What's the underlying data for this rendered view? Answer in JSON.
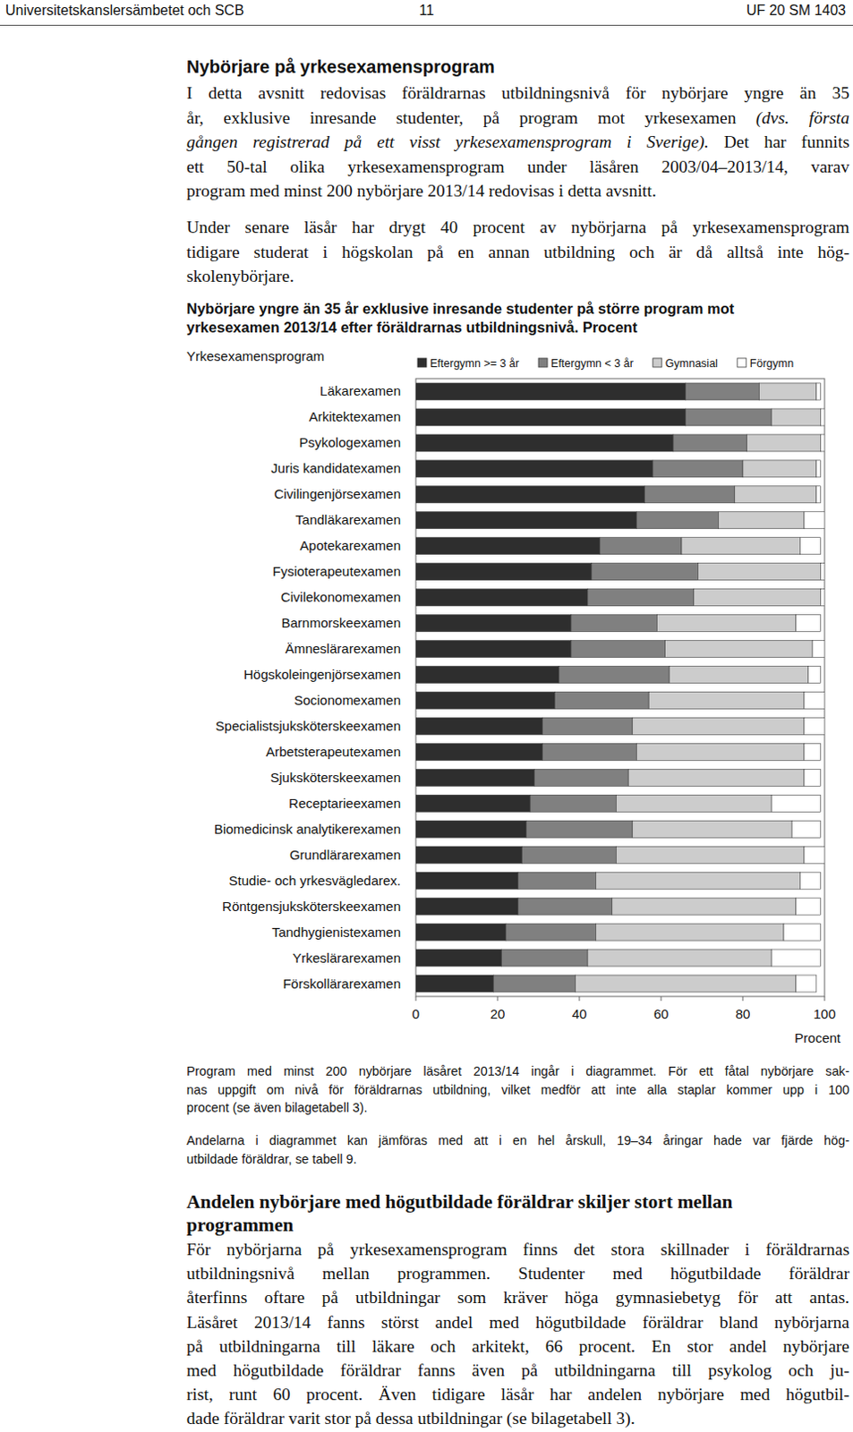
{
  "header": {
    "left": "Universitetskanslersämbetet och SCB",
    "page": "11",
    "right": "UF 20 SM 1403"
  },
  "section": {
    "heading": "Nybörjare på yrkesexamensprogram",
    "paragraphs": [
      [
        [
          {
            "text": "I detta avsnitt redovisas föräldrarnas utbildningsnivå för nybörjare yngre än 35",
            "italic": false
          }
        ],
        [
          {
            "text": "år, exklusive inresande studenter, på program mot yrkesexamen ",
            "italic": false
          },
          {
            "text": "(dvs. första",
            "italic": true
          }
        ],
        [
          {
            "text": "gången registrerad på ett visst yrkesexamensprogram i Sverige).",
            "italic": true
          },
          {
            "text": " Det har funnits",
            "italic": false
          }
        ],
        [
          {
            "text": "ett 50-tal olika yrkesexamensprogram under läsåren 2003/04–2013/14, varav",
            "italic": false
          }
        ],
        [
          {
            "text": "program med minst 200 nybörjare 2013/14 redovisas i detta avsnitt.",
            "italic": false
          }
        ]
      ],
      [
        [
          {
            "text": "Under senare läsår har drygt 40 procent av nybörjarna på yrkesexamensprogram",
            "italic": false
          }
        ],
        [
          {
            "text": "tidigare studerat i högskolan på en annan utbildning och är då alltså inte hög-",
            "italic": false
          }
        ],
        [
          {
            "text": "skolenybörjare.",
            "italic": false
          }
        ]
      ]
    ]
  },
  "chart_data": {
    "type": "bar",
    "orientation": "horizontal",
    "stacked": true,
    "title": [
      "Nybörjare yngre än 35 år exklusive inresande studenter på större program mot",
      "yrkesexamen 2013/14 efter föräldrarnas utbildningsnivå. Procent"
    ],
    "y_label": "Yrkesexamensprogram",
    "x_label": "Procent",
    "categories": [
      "Läkarexamen",
      "Arkitektexamen",
      "Psykologexamen",
      "Juris kandidatexamen",
      "Civilingenjörsexamen",
      "Tandläkarexamen",
      "Apotekarexamen",
      "Fysioterapeutexamen",
      "Civilekonomexamen",
      "Barnmorskeexamen",
      "Ämneslärarexamen",
      "Högskoleingenjörsexamen",
      "Socionomexamen",
      "Specialistsjuksköterskeexamen",
      "Arbetsterapeutexamen",
      "Sjuksköterskeexamen",
      "Receptarieexamen",
      "Biomedicinsk analytikerexamen",
      "Grundlärarexamen",
      "Studie- och yrkesvägledarex.",
      "Röntgensjuksköterskeexamen",
      "Tandhygienistexamen",
      "Yrkeslärarexamen",
      "Förskollärarexamen"
    ],
    "series": [
      {
        "name": "Eftergymn >= 3 år",
        "color": "#2e2e2e",
        "values": [
          66,
          66,
          63,
          58,
          56,
          54,
          45,
          43,
          42,
          38,
          38,
          35,
          34,
          31,
          31,
          29,
          28,
          27,
          26,
          25,
          25,
          22,
          21,
          19
        ]
      },
      {
        "name": "Eftergymn < 3 år",
        "color": "#808080",
        "values": [
          18,
          21,
          18,
          22,
          22,
          20,
          20,
          26,
          26,
          21,
          23,
          27,
          23,
          22,
          23,
          23,
          21,
          26,
          23,
          19,
          23,
          22,
          21,
          20
        ]
      },
      {
        "name": "Gymnasial",
        "color": "#cccccc",
        "values": [
          14,
          12,
          18,
          18,
          20,
          21,
          29,
          30,
          31,
          34,
          36,
          34,
          38,
          42,
          41,
          43,
          38,
          39,
          46,
          50,
          45,
          46,
          45,
          54
        ]
      },
      {
        "name": "Förgymn",
        "color": "#ffffff",
        "values": [
          1,
          1,
          1,
          1,
          1,
          5,
          5,
          1,
          1,
          6,
          3,
          3,
          5,
          5,
          4,
          4,
          12,
          7,
          5,
          5,
          6,
          9,
          12,
          5
        ]
      }
    ],
    "xlim": [
      0,
      100
    ],
    "xticks": [
      0,
      20,
      40,
      60,
      80,
      100
    ],
    "legend": "top"
  },
  "notes": [
    [
      "Program med minst 200 nybörjare läsåret  2013/14 ingår i diagrammet. För ett fåtal nybörjare sak-",
      "nas uppgift om nivå för föräldrarnas utbildning, vilket medför att inte alla staplar kommer upp i 100",
      "procent (se även bilagetabell 3)."
    ],
    [
      "Andelarna i diagrammet kan jämföras med att i en hel årskull, 19–34 åringar hade var fjärde hög-",
      "utbildade föräldrar, se tabell 9."
    ]
  ],
  "section2": {
    "heading": [
      "Andelen nybörjare med högutbildade föräldrar skiljer stort mellan",
      "programmen"
    ],
    "paragraph": [
      "För nybörjarna på yrkesexamensprogram finns det stora skillnader i föräldrarnas",
      "utbildningsnivå mellan programmen. Studenter med högutbildade föräldrar",
      "återfinns oftare på utbildningar som kräver höga gymnasiebetyg för att antas.",
      "Läsåret 2013/14 fanns störst andel med högutbildade föräldrar bland nybörjarna",
      "på utbildningarna till läkare och arkitekt, 66 procent. En stor andel nybörjare",
      "med högutbildade föräldrar fanns även på utbildningarna till psykolog och ju-",
      "rist, runt 60 procent. Även tidigare läsår har andelen nybörjare med högutbil-",
      "dade föräldrar varit stor på dessa utbildningar (se bilagetabell 3)."
    ]
  }
}
